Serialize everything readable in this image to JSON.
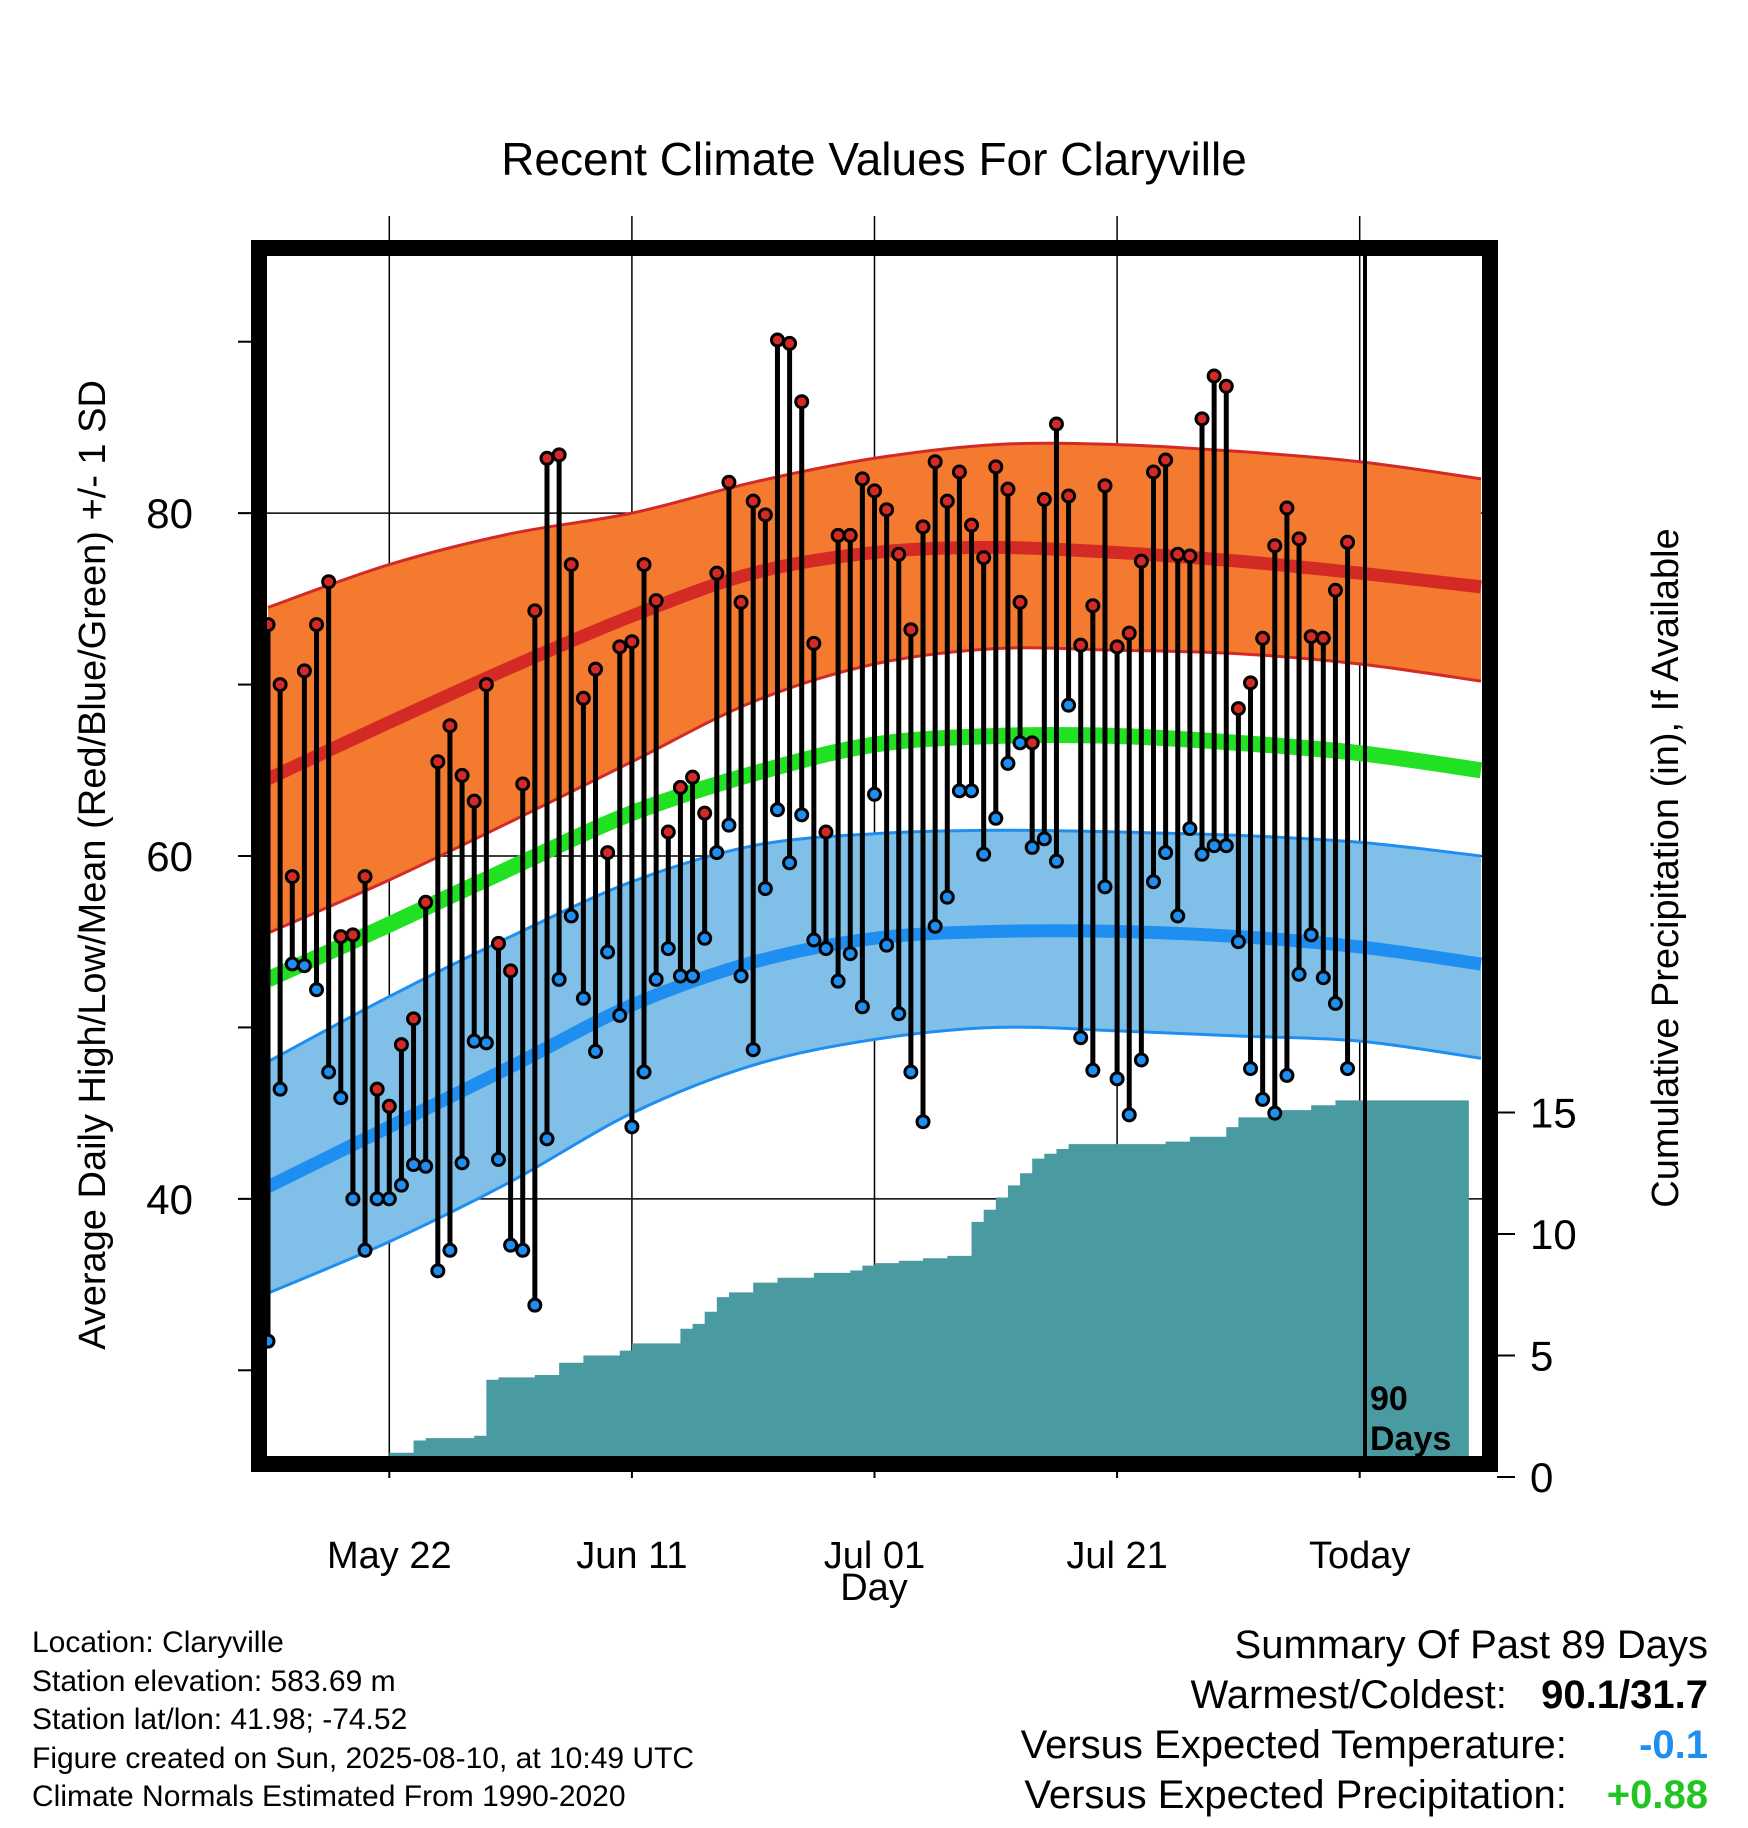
{
  "chart_data": {
    "type": "line",
    "title": "Recent Climate Values For Claryville",
    "xlabel": "Day",
    "ylabel_left": "Average Daily High/Low/Mean (Red/Blue/Green) +/- 1 SD",
    "ylabel_right": "Cumulative Precipitation (in), If Available",
    "x_ticks": [
      "May 22",
      "Jun 11",
      "Jul 01",
      "Jul 21",
      "Today"
    ],
    "y_left_ticks": [
      "40",
      "60",
      "80"
    ],
    "y_left_range": [
      25,
      95
    ],
    "y_right_ticks": [
      "0",
      "5",
      "10",
      "15"
    ],
    "y_right_range": [
      0,
      40
    ],
    "today_marker": "90\nDays",
    "colors": {
      "high_band": "#f47a30",
      "high_mean": "#d42a26",
      "low_band": "#80c0e8",
      "low_mean": "#1e8ef0",
      "mean": "#22e022",
      "precip": "#4a9aa2",
      "high_dot": "#d42a26",
      "low_dot": "#1e8ef0"
    },
    "normals": {
      "days": [
        0,
        10,
        20,
        30,
        40,
        50,
        60,
        70,
        80,
        90,
        100
      ],
      "high_mean": [
        64.5,
        67.8,
        71.0,
        74.0,
        76.5,
        77.7,
        78.0,
        77.7,
        77.2,
        76.5,
        75.7
      ],
      "high_upper": [
        74.5,
        77.0,
        78.8,
        80.0,
        81.8,
        83.2,
        84.0,
        84.0,
        83.6,
        83.0,
        82.0
      ],
      "high_lower": [
        55.5,
        58.6,
        62.0,
        65.5,
        69.0,
        71.2,
        72.1,
        72.0,
        71.8,
        71.2,
        70.2
      ],
      "mean": [
        52.8,
        56.0,
        59.3,
        62.5,
        64.8,
        66.5,
        67.0,
        67.0,
        66.6,
        66.0,
        65.0
      ],
      "low_mean": [
        40.7,
        44.2,
        47.7,
        51.3,
        53.8,
        55.2,
        55.6,
        55.6,
        55.3,
        54.7,
        53.7
      ],
      "low_upper": [
        48.0,
        51.8,
        55.3,
        58.5,
        60.6,
        61.3,
        61.5,
        61.4,
        61.2,
        60.8,
        60.0
      ],
      "low_lower": [
        34.5,
        37.5,
        41.0,
        45.0,
        47.8,
        49.3,
        50.0,
        49.8,
        49.5,
        49.2,
        48.2
      ]
    },
    "daily_high": [
      73.5,
      70.0,
      58.8,
      70.8,
      73.5,
      76.0,
      55.3,
      55.4,
      58.8,
      46.4,
      45.4,
      49.0,
      50.5,
      57.3,
      65.5,
      67.6,
      64.7,
      63.2,
      70.0,
      54.9,
      53.3,
      64.2,
      74.3,
      83.2,
      83.4,
      77.0,
      69.2,
      70.9,
      60.2,
      72.2,
      72.5,
      77.0,
      74.9,
      61.4,
      64.0,
      64.6,
      62.5,
      76.5,
      81.8,
      74.8,
      80.7,
      79.9,
      90.1,
      89.9,
      86.5,
      72.4,
      61.4,
      78.7,
      78.7,
      82.0,
      81.3,
      80.2,
      77.6,
      73.2,
      79.2,
      83.0,
      80.7,
      82.4,
      79.3,
      77.4,
      82.7,
      81.4,
      74.8,
      66.6,
      80.8,
      85.2,
      81.0,
      72.3,
      74.6,
      81.6,
      72.2,
      73.0,
      77.2,
      82.4,
      83.1,
      77.6,
      77.5,
      85.5,
      88.0,
      87.4,
      68.6,
      70.1,
      72.7,
      78.1,
      80.3,
      78.5,
      72.8,
      72.7,
      75.5,
      78.3
    ],
    "daily_low": [
      31.7,
      46.4,
      53.7,
      53.6,
      52.2,
      47.4,
      45.9,
      40.0,
      37.0,
      40.0,
      40.0,
      40.8,
      42.0,
      41.9,
      35.8,
      37.0,
      42.1,
      49.2,
      49.1,
      42.3,
      37.3,
      37.0,
      33.8,
      43.5,
      52.8,
      56.5,
      51.7,
      48.6,
      54.4,
      50.7,
      44.2,
      47.4,
      52.8,
      54.6,
      53.0,
      53.0,
      55.2,
      60.2,
      61.8,
      53.0,
      48.7,
      58.1,
      62.7,
      59.6,
      62.4,
      55.1,
      54.6,
      52.7,
      54.3,
      51.2,
      63.6,
      54.8,
      50.8,
      47.4,
      44.5,
      55.9,
      57.6,
      63.8,
      63.8,
      60.1,
      62.2,
      65.4,
      66.6,
      60.5,
      61.0,
      59.7,
      68.8,
      49.4,
      47.5,
      58.2,
      47.0,
      44.9,
      48.1,
      58.5,
      60.2,
      56.5,
      61.6,
      60.1,
      60.6,
      60.6,
      55.0,
      47.6,
      45.8,
      45.0,
      47.2,
      53.1,
      55.4,
      52.9,
      51.4,
      47.6
    ],
    "cumulative_precip": {
      "days": [
        1,
        2,
        4,
        6,
        8,
        10,
        12,
        13,
        16,
        17,
        18,
        19,
        20,
        22,
        24,
        26,
        28,
        29,
        30,
        32,
        34,
        35,
        36,
        37,
        38,
        40,
        42,
        45,
        48,
        49,
        50,
        52,
        54,
        56,
        58,
        59,
        60,
        61,
        62,
        63,
        64,
        65,
        66,
        70,
        74,
        76,
        79,
        80,
        83,
        86,
        88,
        99
      ],
      "values": [
        0.0,
        0.4,
        0.4,
        0.5,
        0.5,
        1.0,
        1.5,
        1.6,
        1.6,
        1.7,
        4.0,
        4.1,
        4.1,
        4.2,
        4.7,
        5.0,
        5.0,
        5.2,
        5.5,
        5.5,
        6.1,
        6.3,
        6.8,
        7.4,
        7.6,
        8.0,
        8.2,
        8.4,
        8.5,
        8.7,
        8.8,
        8.9,
        9.0,
        9.1,
        10.5,
        11.0,
        11.5,
        12.0,
        12.5,
        13.1,
        13.3,
        13.5,
        13.7,
        13.7,
        13.8,
        14.0,
        14.4,
        14.8,
        15.1,
        15.3,
        15.5,
        15.5
      ]
    }
  },
  "info": {
    "location": "Location: Claryville",
    "elevation": "Station elevation: 583.69 m",
    "latlon": "Station lat/lon: 41.98; -74.52",
    "created": "Figure created on Sun, 2025-08-10, at 10:49 UTC",
    "normals": "Climate Normals Estimated From 1990-2020"
  },
  "summary": {
    "title": "Summary Of Past 89 Days",
    "warmest_label": "Warmest/Coldest:",
    "warmest_value": "90.1/31.7",
    "temp_label": "Versus Expected Temperature:",
    "temp_value": "-0.1",
    "temp_color": "#1e8ef0",
    "precip_label": "Versus Expected Precipitation:",
    "precip_value": "+0.88",
    "precip_color": "#22c422"
  }
}
